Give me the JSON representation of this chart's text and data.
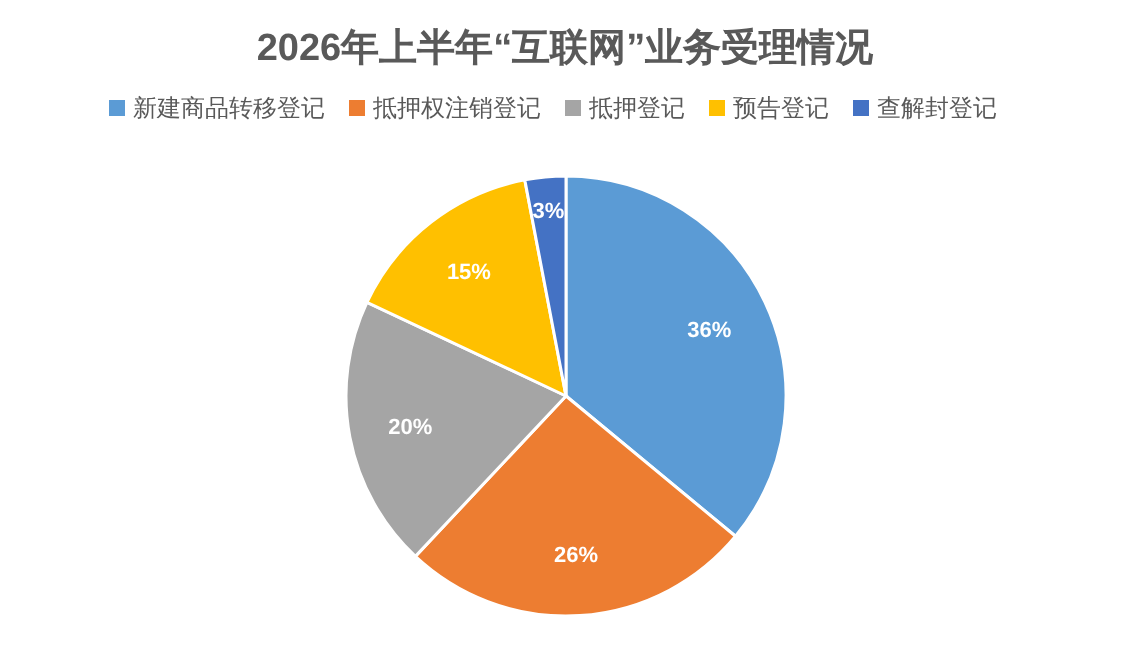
{
  "chart_data": {
    "type": "pie",
    "title": "2026年上半年“互联网”业务受理情况",
    "categories": [
      "新建商品转移登记",
      "抵押权注销登记",
      "抵押登记",
      "预告登记",
      "查解封登记"
    ],
    "values": [
      36,
      26,
      20,
      15,
      3
    ],
    "colors": [
      "#5b9bd5",
      "#ed7d31",
      "#a5a5a5",
      "#ffc000",
      "#4472c4"
    ],
    "value_labels": [
      "36%",
      "26%",
      "20%",
      "15%",
      "3%"
    ],
    "legend": "top"
  }
}
